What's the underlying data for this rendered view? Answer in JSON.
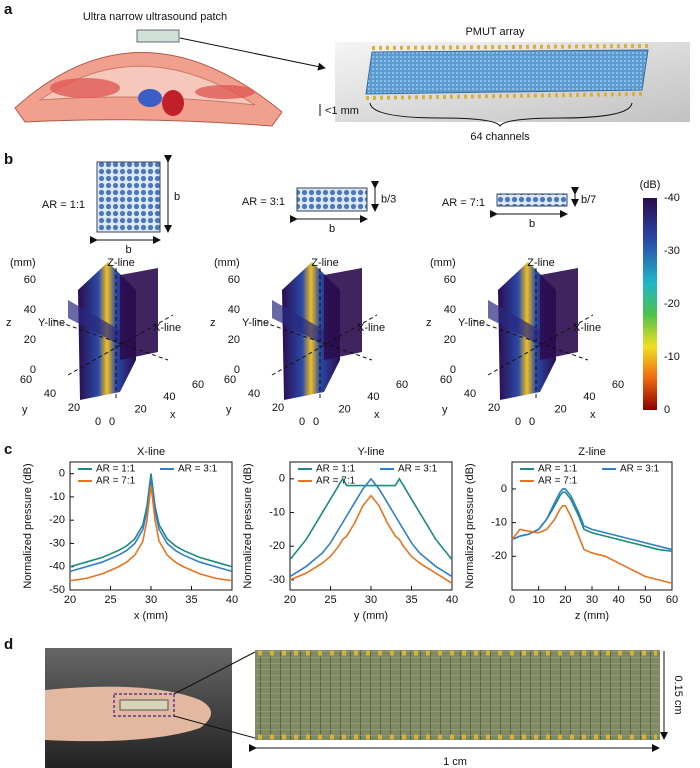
{
  "panels": {
    "a": {
      "label": "a",
      "patch_label": "Ultra narrow ultrasound patch",
      "array_label": "PMUT array",
      "thickness": "<1 mm",
      "channels": "64 channels"
    },
    "b": {
      "label": "b",
      "shapes": [
        {
          "ratio": "AR = 1:1",
          "height": "b",
          "width": "b"
        },
        {
          "ratio": "AR = 3:1",
          "height": "b/3",
          "width": "b"
        },
        {
          "ratio": "AR = 7:1",
          "height": "b/7",
          "width": "b"
        }
      ],
      "plots": [
        {
          "unit": "(mm)",
          "z_axis": "z",
          "y_axis": "y",
          "x_axis": "x",
          "z_line": "Z-line",
          "y_line": "Y-line",
          "x_line": "X-line",
          "lim": [
            0,
            60
          ],
          "z_ticks": [
            0,
            20,
            40,
            60
          ],
          "y_ticks": [
            0,
            20,
            40,
            60
          ],
          "x_ticks": [
            0,
            20,
            40,
            60
          ]
        },
        {
          "unit": "(mm)",
          "z_axis": "z",
          "y_axis": "y",
          "x_axis": "x",
          "z_line": "Z-line",
          "y_line": "Y-line",
          "x_line": "X-line",
          "lim": [
            0,
            60
          ],
          "z_ticks": [
            0,
            20,
            40,
            60
          ],
          "y_ticks": [
            0,
            20,
            40,
            60
          ],
          "x_ticks": [
            0,
            20,
            40,
            60
          ]
        },
        {
          "unit": "(mm)",
          "z_axis": "z",
          "y_axis": "y",
          "x_axis": "x",
          "z_line": "Z-line",
          "y_line": "Y-line",
          "x_line": "X-line",
          "lim": [
            0,
            60
          ],
          "z_ticks": [
            0,
            20,
            40,
            60
          ],
          "y_ticks": [
            0,
            20,
            40,
            60
          ],
          "x_ticks": [
            0,
            20,
            40,
            60
          ]
        }
      ],
      "colorbar": {
        "unit": "(dB)",
        "lim": [
          -40,
          0
        ],
        "ticks": [
          -40,
          -30,
          -20,
          -10,
          0
        ]
      }
    },
    "c": {
      "label": "c"
    },
    "d": {
      "label": "d",
      "height": "0.15 cm",
      "length": "1 cm"
    }
  },
  "chart_data": [
    {
      "type": "line",
      "title": "X-line",
      "xlabel": "x (mm)",
      "ylabel": "Normalized pressure (dB)",
      "x": [
        20,
        22,
        24,
        26,
        27,
        28,
        29,
        29.5,
        30,
        30.5,
        31,
        32,
        33,
        34,
        36,
        38,
        40
      ],
      "series": [
        {
          "name": "AR = 1:1",
          "color": "#1b8a80",
          "values": [
            -40,
            -38,
            -36,
            -33,
            -31,
            -28,
            -22,
            -14,
            0,
            -14,
            -22,
            -28,
            -31,
            -33,
            -36,
            -38,
            -40
          ]
        },
        {
          "name": "AR = 3:1",
          "color": "#2f7fc8",
          "values": [
            -42,
            -40,
            -38,
            -35,
            -33,
            -30,
            -24,
            -16,
            -2,
            -16,
            -24,
            -30,
            -33,
            -35,
            -38,
            -40,
            -42
          ]
        },
        {
          "name": "AR = 7:1",
          "color": "#e8731f",
          "values": [
            -46,
            -45,
            -43,
            -40,
            -38,
            -35,
            -29,
            -20,
            -5,
            -20,
            -29,
            -35,
            -38,
            -40,
            -43,
            -45,
            -46
          ]
        }
      ],
      "xlim": [
        20,
        40
      ],
      "ylim": [
        -50,
        5
      ],
      "xticks": [
        20,
        25,
        30,
        35,
        40
      ],
      "yticks": [
        -50,
        -40,
        -30,
        -20,
        -10,
        0
      ]
    },
    {
      "type": "line",
      "title": "Y-line",
      "xlabel": "y (mm)",
      "ylabel": "Normalized pressure (dB)",
      "x": [
        20,
        22,
        24,
        25,
        26,
        26.5,
        27,
        28,
        29,
        30,
        31,
        32,
        33,
        33.5,
        34,
        35,
        36,
        38,
        40
      ],
      "series": [
        {
          "name": "AR = 1:1",
          "color": "#1b8a80",
          "values": [
            -24,
            -18,
            -10,
            -6,
            -2,
            0,
            -2,
            -2,
            -2,
            -2,
            -2,
            -2,
            -2,
            0,
            -2,
            -6,
            -10,
            -18,
            -24
          ]
        },
        {
          "name": "AR = 3:1",
          "color": "#2f7fc8",
          "values": [
            -29,
            -26,
            -22,
            -19,
            -15,
            -13,
            -11,
            -7,
            -3,
            0,
            -3,
            -7,
            -11,
            -13,
            -15,
            -19,
            -22,
            -26,
            -29
          ]
        },
        {
          "name": "AR = 7:1",
          "color": "#e8731f",
          "values": [
            -30,
            -28,
            -25,
            -23,
            -20,
            -18,
            -17,
            -13,
            -8,
            -5,
            -8,
            -13,
            -17,
            -18,
            -20,
            -23,
            -25,
            -28,
            -31
          ]
        }
      ],
      "xlim": [
        20,
        40
      ],
      "ylim": [
        -33,
        5
      ],
      "xticks": [
        20,
        25,
        30,
        35,
        40
      ],
      "yticks": [
        -30,
        -20,
        -10,
        0
      ]
    },
    {
      "type": "line",
      "title": "Z-line",
      "xlabel": "z (mm)",
      "ylabel": "Normalized pressure (dB)",
      "x": [
        0,
        3,
        6,
        10,
        13,
        16,
        18,
        19,
        20,
        22,
        25,
        27,
        30,
        35,
        40,
        45,
        50,
        55,
        60
      ],
      "series": [
        {
          "name": "AR = 1:1",
          "color": "#1b8a80",
          "values": [
            -15,
            -14,
            -13.5,
            -12,
            -9,
            -5,
            -2,
            -1,
            -1,
            -3,
            -8,
            -12,
            -13,
            -14,
            -15,
            -16,
            -17,
            -18,
            -18.5
          ]
        },
        {
          "name": "AR = 3:1",
          "color": "#2f7fc8",
          "values": [
            -15,
            -14,
            -13.5,
            -12,
            -9,
            -4,
            -1,
            0,
            0,
            -2,
            -7,
            -11,
            -12,
            -13,
            -14,
            -15,
            -16,
            -17,
            -18
          ]
        },
        {
          "name": "AR = 7:1",
          "color": "#e8731f",
          "values": [
            -15,
            -12,
            -12.5,
            -13,
            -12,
            -9,
            -6,
            -5,
            -5,
            -8,
            -14,
            -18,
            -19,
            -20,
            -22,
            -24,
            -26,
            -27,
            -28
          ]
        }
      ],
      "xlim": [
        0,
        60
      ],
      "ylim": [
        -30,
        8
      ],
      "xticks": [
        0,
        10,
        20,
        30,
        40,
        50,
        60
      ],
      "yticks": [
        -20,
        -10,
        0
      ]
    }
  ]
}
